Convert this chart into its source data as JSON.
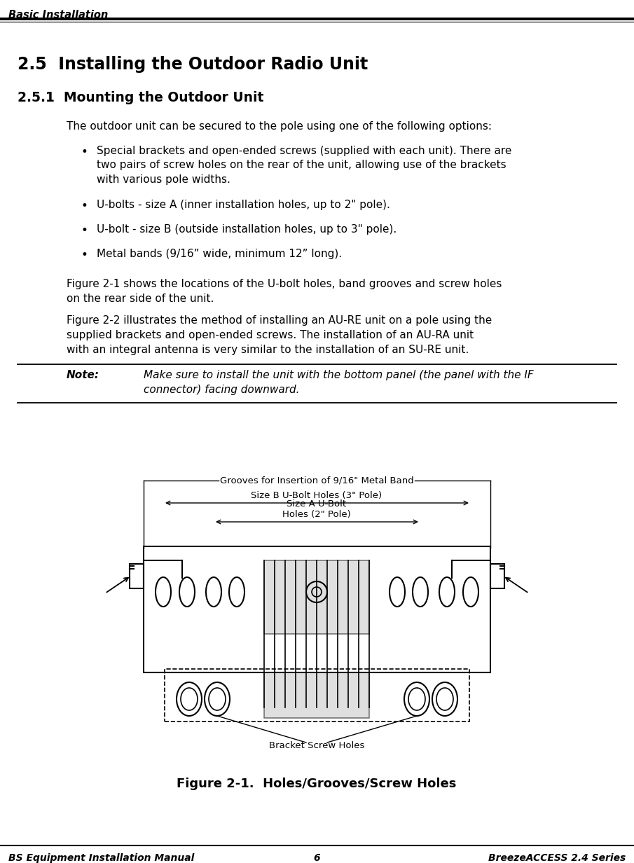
{
  "page_title": "Basic Installation",
  "section_title": "2.5  Installing the Outdoor Radio Unit",
  "subsection_title": "2.5.1  Mounting the Outdoor Unit",
  "body_text": "The outdoor unit can be secured to the pole using one of the following options:",
  "bullets": [
    "Special brackets and open-ended screws (supplied with each unit). There are\ntwo pairs of screw holes on the rear of the unit, allowing use of the brackets\nwith various pole widths.",
    "U-bolts - size A (inner installation holes, up to 2\" pole).",
    "U-bolt - size B (outside installation holes, up to 3\" pole).",
    "Metal bands (9/16” wide, minimum 12” long)."
  ],
  "para1": "Figure 2-1 shows the locations of the U-bolt holes, band grooves and screw holes\non the rear side of the unit.",
  "para2": "Figure 2-2 illustrates the method of installing an AU-RE unit on a pole using the\nsupplied brackets and open-ended screws. The installation of an AU-RA unit\nwith an integral antenna is very similar to the installation of an SU-RE unit.",
  "note_label": "Note:",
  "note_text": "Make sure to install the unit with the bottom panel (the panel with the IF\nconnector) facing downward.",
  "figure_caption": "Figure 2-1.  Holes/Grooves/Screw Holes",
  "footer_left": "BS Equipment Installation Manual",
  "footer_center": "6",
  "footer_right": "BreezeACCESS 2.4 Series",
  "label1": "Grooves for Insertion of 9/16\" Metal Band",
  "label2": "Size B U-Bolt Holes (3\" Pole)",
  "label3": "Size A U-Bolt\nHoles (2\" Pole)",
  "label4": "Bracket Screw Holes",
  "bg_color": "#ffffff"
}
